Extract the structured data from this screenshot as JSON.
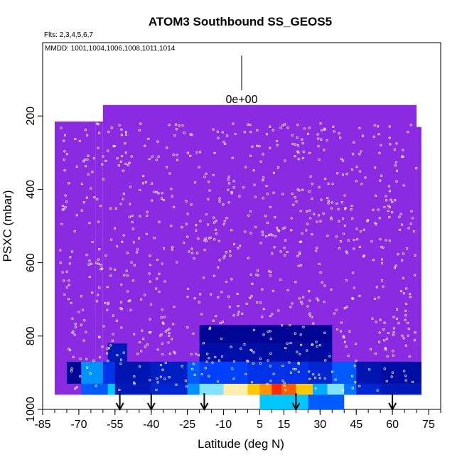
{
  "chart_data": {
    "type": "heatmap",
    "title": "ATOM3 Southbound SS_GEOS5",
    "flights_label": "Flts: 2,3,4,5,6,7",
    "dates_label": "MMDD: 1001,1004,1006,1008,1011,1014",
    "xlabel": "Latitude (deg N)",
    "ylabel": "PSXC (mbar)",
    "xlim": [
      -85,
      80
    ],
    "ylim": [
      1000,
      0
    ],
    "x_ticks": [
      -85,
      -70,
      -55,
      -40,
      -25,
      -10,
      5,
      15,
      30,
      45,
      60,
      75
    ],
    "x_tick_labels": [
      "-85",
      "-70",
      "-55",
      "-40",
      "-25",
      "-10",
      "5",
      "15",
      "30",
      "45",
      "60",
      "75"
    ],
    "y_ticks": [
      200,
      400,
      600,
      800,
      1000
    ],
    "y_tick_labels": [
      "200",
      "400",
      "600",
      "800",
      "1000"
    ],
    "color_key_label": "0e+00",
    "colors": {
      "background_field": "#8a2be2",
      "low": "#00008b",
      "mid": "#00bfff",
      "high": "#ff3300",
      "track_points": "#ffffff",
      "arrows": "#000000"
    },
    "curtain_columns": [
      {
        "lat_from": -80,
        "lat_to": -63,
        "p_top": 215,
        "p_bottom": 960
      },
      {
        "lat_from": -63,
        "lat_to": -60,
        "p_top": 215,
        "p_bottom": 960
      },
      {
        "lat_from": -60,
        "lat_to": 70,
        "p_top": 170,
        "p_bottom": 960
      },
      {
        "lat_from": 70,
        "lat_to": 72,
        "p_top": 230,
        "p_bottom": 960
      }
    ],
    "boundary_layer_bands": [
      {
        "p_top": 930,
        "p_bottom": 960,
        "segments": [
          {
            "lat_from": -69,
            "lat_to": -58,
            "level": 0.3
          },
          {
            "lat_from": -58,
            "lat_to": -55,
            "level": 0.5
          },
          {
            "lat_from": -55,
            "lat_to": -40,
            "level": 0.1
          },
          {
            "lat_from": -40,
            "lat_to": -25,
            "level": 0.15
          },
          {
            "lat_from": -25,
            "lat_to": -20,
            "level": 0.4
          },
          {
            "lat_from": -20,
            "lat_to": -10,
            "level": 0.6
          },
          {
            "lat_from": -10,
            "lat_to": 0,
            "level": 0.75
          },
          {
            "lat_from": 0,
            "lat_to": 5,
            "level": 0.85
          },
          {
            "lat_from": 5,
            "lat_to": 10,
            "level": 0.9
          },
          {
            "lat_from": 10,
            "lat_to": 14,
            "level": 1.0
          },
          {
            "lat_from": 14,
            "lat_to": 20,
            "level": 0.95
          },
          {
            "lat_from": 20,
            "lat_to": 27,
            "level": 0.85
          },
          {
            "lat_from": 27,
            "lat_to": 33,
            "level": 0.45
          },
          {
            "lat_from": 33,
            "lat_to": 40,
            "level": 0.6
          },
          {
            "lat_from": 40,
            "lat_to": 45,
            "level": 0.35
          },
          {
            "lat_from": 45,
            "lat_to": 55,
            "level": 0.15
          },
          {
            "lat_from": 55,
            "lat_to": 72,
            "level": 0.1
          }
        ]
      },
      {
        "p_top": 870,
        "p_bottom": 930,
        "segments": [
          {
            "lat_from": -75,
            "lat_to": -69,
            "level": 0.02
          },
          {
            "lat_from": -69,
            "lat_to": -60,
            "level": 0.4
          },
          {
            "lat_from": -60,
            "lat_to": -55,
            "level": 0.2
          },
          {
            "lat_from": -55,
            "lat_to": -40,
            "level": 0.08
          },
          {
            "lat_from": -40,
            "lat_to": -25,
            "level": 0.12
          },
          {
            "lat_from": -25,
            "lat_to": -20,
            "level": 0.3
          },
          {
            "lat_from": -20,
            "lat_to": 0,
            "level": 0.25
          },
          {
            "lat_from": 0,
            "lat_to": 25,
            "level": 0.2
          },
          {
            "lat_from": 25,
            "lat_to": 35,
            "level": 0.15
          },
          {
            "lat_from": 35,
            "lat_to": 45,
            "level": 0.3
          },
          {
            "lat_from": 45,
            "lat_to": 55,
            "level": 0.08
          },
          {
            "lat_from": 55,
            "lat_to": 72,
            "level": 0.05
          }
        ]
      },
      {
        "p_top": 820,
        "p_bottom": 870,
        "segments": [
          {
            "lat_from": -58,
            "lat_to": -50,
            "level": 0.1
          },
          {
            "lat_from": -20,
            "lat_to": 5,
            "level": 0.06
          },
          {
            "lat_from": 5,
            "lat_to": 25,
            "level": 0.05
          },
          {
            "lat_from": 25,
            "lat_to": 35,
            "level": 0.04
          }
        ]
      },
      {
        "p_top": 770,
        "p_bottom": 820,
        "segments": [
          {
            "lat_from": -20,
            "lat_to": 35,
            "level": 0.02
          }
        ]
      },
      {
        "p_top": 960,
        "p_bottom": 1000,
        "segments": [
          {
            "lat_from": 5,
            "lat_to": 25,
            "level": 0.5
          },
          {
            "lat_from": 25,
            "lat_to": 40,
            "level": 0.3
          }
        ]
      }
    ],
    "arrow_latitudes": [
      -53,
      -40,
      -18,
      20,
      60
    ],
    "track_point_count": 900
  }
}
